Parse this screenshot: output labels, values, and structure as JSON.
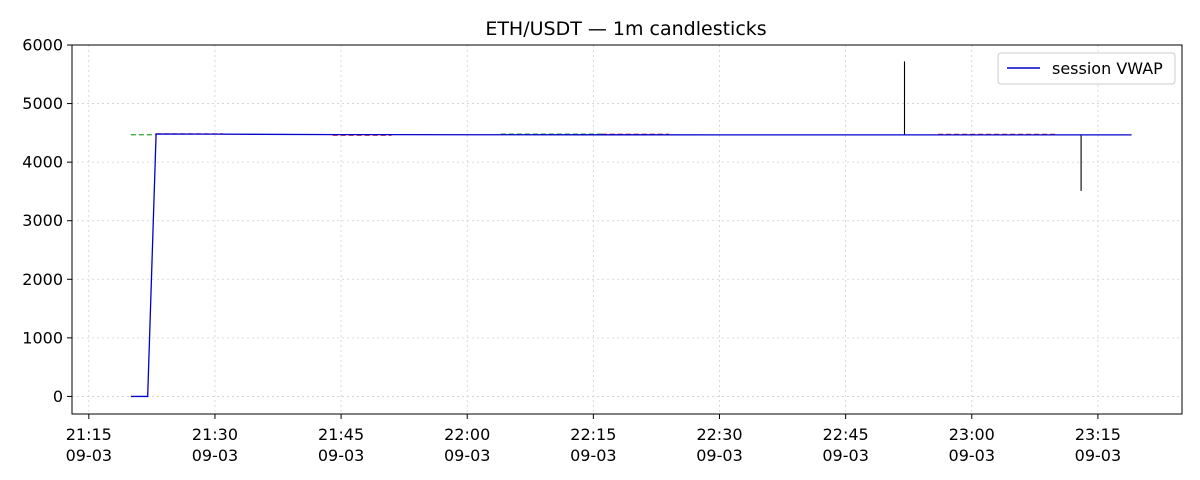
{
  "chart_data": {
    "type": "line",
    "title": "ETH/USDT — 1m candlesticks",
    "xlabel": "",
    "ylabel": "",
    "ylim": [
      -300,
      6000
    ],
    "xlim": [
      "09-03 21:13",
      "09-03 23:25"
    ],
    "yticks": [
      0,
      1000,
      2000,
      3000,
      4000,
      5000,
      6000
    ],
    "ytick_labels": [
      "0",
      "1000",
      "2000",
      "3000",
      "4000",
      "5000",
      "6000"
    ],
    "xticks": [
      {
        "time": "21:15",
        "date": "09-03"
      },
      {
        "time": "21:30",
        "date": "09-03"
      },
      {
        "time": "21:45",
        "date": "09-03"
      },
      {
        "time": "22:00",
        "date": "09-03"
      },
      {
        "time": "22:15",
        "date": "09-03"
      },
      {
        "time": "22:30",
        "date": "09-03"
      },
      {
        "time": "22:45",
        "date": "09-03"
      },
      {
        "time": "23:00",
        "date": "09-03"
      },
      {
        "time": "23:15",
        "date": "09-03"
      }
    ],
    "grid": true,
    "legend": {
      "placement": "top-right",
      "entries": [
        "session VWAP"
      ]
    },
    "series": [
      {
        "name": "session VWAP",
        "color": "#0000cc",
        "points": [
          [
            "21:20",
            0
          ],
          [
            "21:21",
            0
          ],
          [
            "21:22",
            0
          ],
          [
            "21:23",
            4480
          ],
          [
            "21:30",
            4478
          ],
          [
            "21:45",
            4470
          ],
          [
            "22:00",
            4468
          ],
          [
            "22:15",
            4467
          ],
          [
            "22:30",
            4466
          ],
          [
            "22:45",
            4466
          ],
          [
            "23:00",
            4466
          ],
          [
            "23:15",
            4466
          ],
          [
            "23:19",
            4466
          ]
        ]
      }
    ],
    "candles": {
      "up_color": "#2ca02c",
      "down_color": "#d62728",
      "wick_color": "#000000",
      "segments": [
        {
          "start": "21:20",
          "end": "21:23",
          "price": 4468,
          "color": "#2ca02c"
        },
        {
          "start": "21:23",
          "end": "21:31",
          "price": 4482,
          "color": "#d62728"
        },
        {
          "start": "21:44",
          "end": "21:51",
          "price": 4458,
          "color": "#d62728"
        },
        {
          "start": "22:04",
          "end": "22:16",
          "price": 4478,
          "color": "#2ca02c"
        },
        {
          "start": "22:16",
          "end": "22:24",
          "price": 4476,
          "color": "#d62728"
        },
        {
          "start": "22:56",
          "end": "23:10",
          "price": 4474,
          "color": "#d62728"
        }
      ],
      "wicks": [
        {
          "time": "22:52",
          "low": 4466,
          "high": 5720
        },
        {
          "time": "23:13",
          "low": 3510,
          "high": 4466
        }
      ]
    }
  }
}
